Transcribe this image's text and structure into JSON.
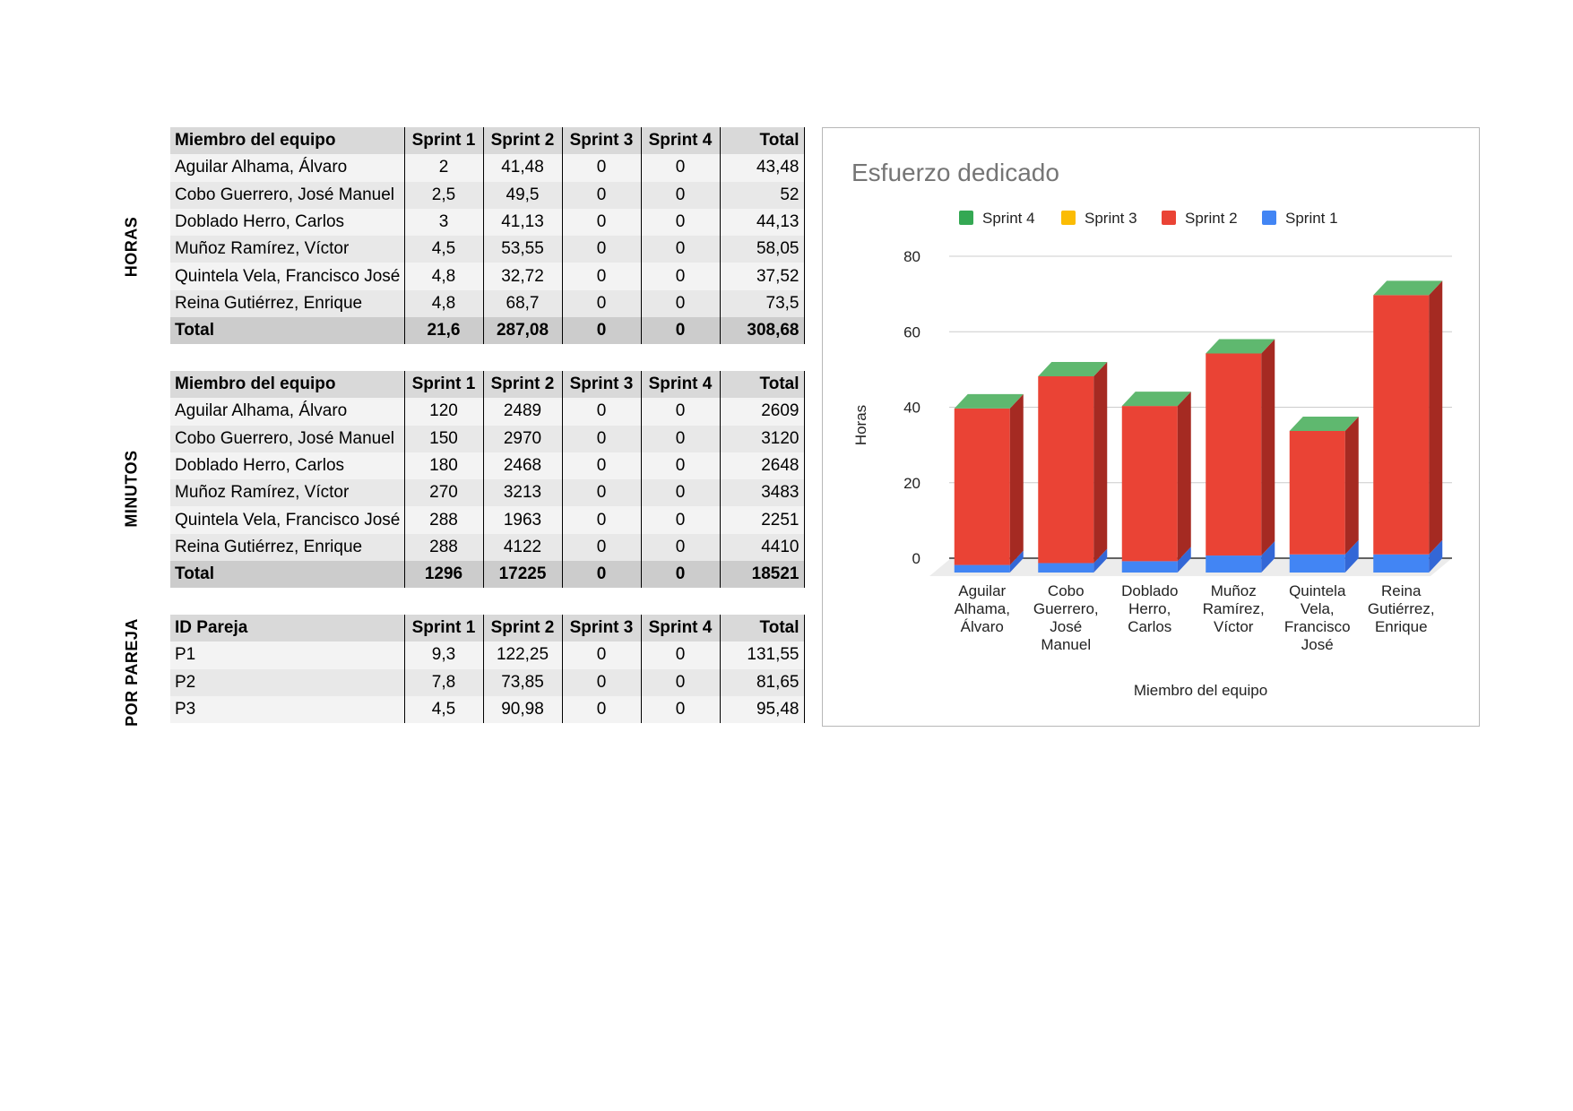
{
  "sections": [
    {
      "side_label": "HORAS",
      "header": [
        "Miembro del equipo",
        "Sprint 1",
        "Sprint 2",
        "Sprint 3",
        "Sprint 4",
        "Total"
      ],
      "rows": [
        [
          "Aguilar Alhama, Álvaro",
          "2",
          "41,48",
          "0",
          "0",
          "43,48"
        ],
        [
          "Cobo Guerrero, José Manuel",
          "2,5",
          "49,5",
          "0",
          "0",
          "52"
        ],
        [
          "Doblado Herro, Carlos",
          "3",
          "41,13",
          "0",
          "0",
          "44,13"
        ],
        [
          "Muñoz Ramírez, Víctor",
          "4,5",
          "53,55",
          "0",
          "0",
          "58,05"
        ],
        [
          "Quintela Vela, Francisco José",
          "4,8",
          "32,72",
          "0",
          "0",
          "37,52"
        ],
        [
          "Reina Gutiérrez, Enrique",
          "4,8",
          "68,7",
          "0",
          "0",
          "73,5"
        ]
      ],
      "totals": [
        "Total",
        "21,6",
        "287,08",
        "0",
        "0",
        "308,68"
      ]
    },
    {
      "side_label": "MINUTOS",
      "header": [
        "Miembro del equipo",
        "Sprint 1",
        "Sprint 2",
        "Sprint 3",
        "Sprint 4",
        "Total"
      ],
      "rows": [
        [
          "Aguilar Alhama, Álvaro",
          "120",
          "2489",
          "0",
          "0",
          "2609"
        ],
        [
          "Cobo Guerrero, José Manuel",
          "150",
          "2970",
          "0",
          "0",
          "3120"
        ],
        [
          "Doblado Herro, Carlos",
          "180",
          "2468",
          "0",
          "0",
          "2648"
        ],
        [
          "Muñoz Ramírez, Víctor",
          "270",
          "3213",
          "0",
          "0",
          "3483"
        ],
        [
          "Quintela Vela, Francisco José",
          "288",
          "1963",
          "0",
          "0",
          "2251"
        ],
        [
          "Reina Gutiérrez, Enrique",
          "288",
          "4122",
          "0",
          "0",
          "4410"
        ]
      ],
      "totals": [
        "Total",
        "1296",
        "17225",
        "0",
        "0",
        "18521"
      ]
    },
    {
      "side_label": "POR PAREJA",
      "header": [
        "ID Pareja",
        "Sprint 1",
        "Sprint 2",
        "Sprint 3",
        "Sprint 4",
        "Total"
      ],
      "rows": [
        [
          "P1",
          "9,3",
          "122,25",
          "0",
          "0",
          "131,55"
        ],
        [
          "P2",
          "7,8",
          "73,85",
          "0",
          "0",
          "81,65"
        ],
        [
          "P3",
          "4,5",
          "90,98",
          "0",
          "0",
          "95,48"
        ]
      ],
      "totals": null
    }
  ],
  "chart_data": {
    "type": "bar",
    "stacked": true,
    "three_d": true,
    "title": "Esfuerzo dedicado",
    "xlabel": "Miembro del equipo",
    "ylabel": "Horas",
    "ylim": [
      0,
      80
    ],
    "yticks": [
      0,
      20,
      40,
      60,
      80
    ],
    "grid": true,
    "legend_position": "top",
    "categories": [
      [
        "Aguilar",
        "Alhama,",
        "Álvaro"
      ],
      [
        "Cobo",
        "Guerrero,",
        "José",
        "Manuel"
      ],
      [
        "Doblado",
        "Herro,",
        "Carlos"
      ],
      [
        "Muñoz",
        "Ramírez,",
        "Víctor"
      ],
      [
        "Quintela",
        "Vela,",
        "Francisco",
        "José"
      ],
      [
        "Reina",
        "Gutiérrez,",
        "Enrique"
      ]
    ],
    "series": [
      {
        "name": "Sprint 1",
        "color": "#4285f4",
        "side_color": "#3367d6",
        "values": [
          2,
          2.5,
          3,
          4.5,
          4.8,
          4.8
        ]
      },
      {
        "name": "Sprint 2",
        "color": "#ea4335",
        "side_color": "#a52a22",
        "values": [
          41.48,
          49.5,
          41.13,
          53.55,
          32.72,
          68.7
        ]
      },
      {
        "name": "Sprint 3",
        "color": "#fbbc04",
        "side_color": "#c99603",
        "values": [
          0,
          0,
          0,
          0,
          0,
          0
        ]
      },
      {
        "name": "Sprint 4",
        "color": "#34a853",
        "side_color": "#2a8a44",
        "values": [
          0,
          0,
          0,
          0,
          0,
          0
        ]
      }
    ],
    "top_color": "#5fb86f",
    "legend_order": [
      "Sprint 4",
      "Sprint 3",
      "Sprint 2",
      "Sprint 1"
    ]
  }
}
